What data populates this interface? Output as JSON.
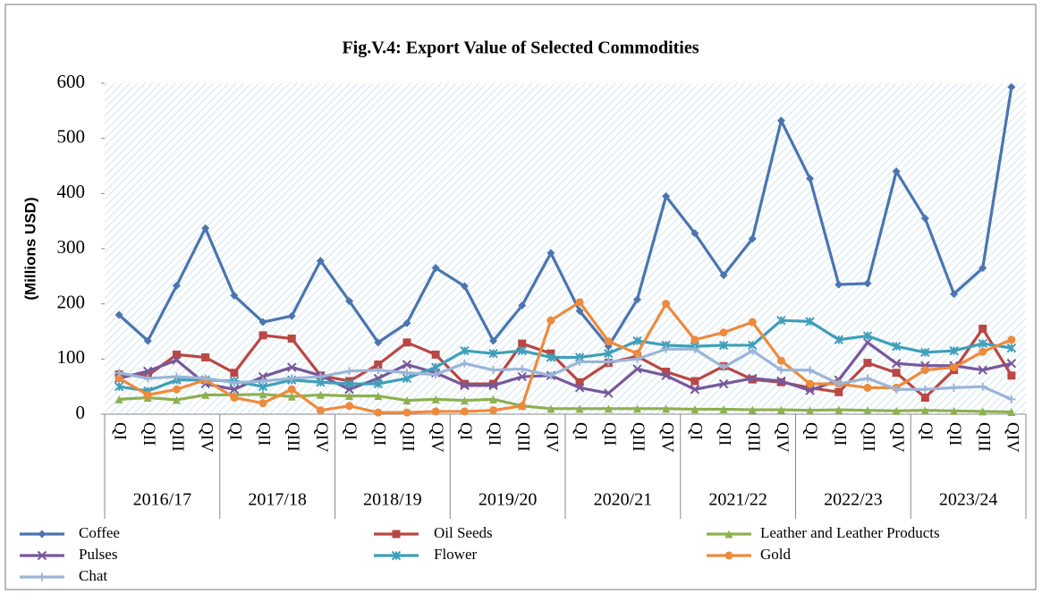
{
  "chart_data": {
    "type": "line",
    "title": "Fig.V.4: Export Value of Selected Commodities",
    "y_label": "(Millions USD)",
    "categories": [
      "QI",
      "QII",
      "QIII",
      "QIV",
      "QI",
      "QII",
      "QIII",
      "QIV",
      "QI",
      "QII",
      "QIII",
      "QIV",
      "QI",
      "QII",
      "QIII",
      "QIV",
      "QI",
      "QII",
      "QIII",
      "QIV",
      "QI",
      "QII",
      "QIII",
      "QIV",
      "QI",
      "QII",
      "QIII",
      "QIV",
      "QI",
      "QII",
      "QIII",
      "QIV"
    ],
    "groups": [
      "2016/17",
      "2017/18",
      "2018/19",
      "2019/20",
      "2020/21",
      "2021/22",
      "2022/23",
      "2023/24"
    ],
    "ylim": [
      0,
      600
    ],
    "yticks": [
      0,
      100,
      200,
      300,
      400,
      500,
      600
    ],
    "series": [
      {
        "name": "Coffee",
        "color": "#4a75b0",
        "marker": "diamond",
        "values": [
          180,
          133,
          233,
          337,
          215,
          167,
          178,
          278,
          205,
          130,
          165,
          265,
          232,
          133,
          197,
          292,
          187,
          123,
          208,
          395,
          328,
          252,
          318,
          532,
          427,
          235,
          237,
          440,
          355,
          218,
          265,
          593
        ]
      },
      {
        "name": "Oil Seeds",
        "color": "#b94743",
        "marker": "square",
        "values": [
          72,
          70,
          108,
          103,
          75,
          143,
          137,
          70,
          60,
          90,
          130,
          108,
          55,
          55,
          128,
          110,
          58,
          93,
          105,
          77,
          60,
          87,
          63,
          58,
          48,
          40,
          93,
          75,
          30,
          80,
          155,
          70
        ]
      },
      {
        "name": "Leather and Leather Products",
        "color": "#8db050",
        "marker": "triangle",
        "values": [
          27,
          30,
          26,
          35,
          35,
          36,
          32,
          35,
          33,
          33,
          25,
          27,
          25,
          27,
          15,
          10,
          10,
          10,
          10,
          10,
          9,
          9,
          8,
          8,
          7,
          8,
          7,
          6,
          7,
          6,
          5,
          4
        ]
      },
      {
        "name": "Pulses",
        "color": "#77589b",
        "marker": "x",
        "values": [
          65,
          78,
          98,
          55,
          45,
          68,
          85,
          70,
          45,
          65,
          90,
          75,
          52,
          52,
          68,
          70,
          48,
          38,
          82,
          70,
          45,
          55,
          65,
          60,
          43,
          62,
          130,
          92,
          88,
          88,
          80,
          92
        ]
      },
      {
        "name": "Flower",
        "color": "#3f9fb8",
        "marker": "star",
        "values": [
          50,
          42,
          62,
          62,
          60,
          50,
          62,
          58,
          55,
          55,
          65,
          85,
          115,
          110,
          115,
          103,
          103,
          110,
          133,
          125,
          123,
          125,
          125,
          170,
          168,
          135,
          142,
          123,
          112,
          115,
          128,
          120
        ]
      },
      {
        "name": "Gold",
        "color": "#ee8a3c",
        "marker": "circle",
        "values": [
          65,
          35,
          45,
          62,
          30,
          20,
          45,
          7,
          15,
          3,
          3,
          5,
          5,
          7,
          15,
          170,
          203,
          132,
          110,
          200,
          135,
          148,
          167,
          97,
          55,
          55,
          48,
          48,
          80,
          85,
          113,
          135
        ]
      },
      {
        "name": "Chat",
        "color": "#9bb5d9",
        "marker": "plus",
        "values": [
          75,
          65,
          68,
          65,
          57,
          60,
          65,
          68,
          78,
          80,
          75,
          72,
          92,
          80,
          82,
          70,
          95,
          95,
          100,
          118,
          118,
          85,
          115,
          80,
          80,
          55,
          65,
          45,
          45,
          48,
          50,
          27
        ]
      }
    ]
  }
}
